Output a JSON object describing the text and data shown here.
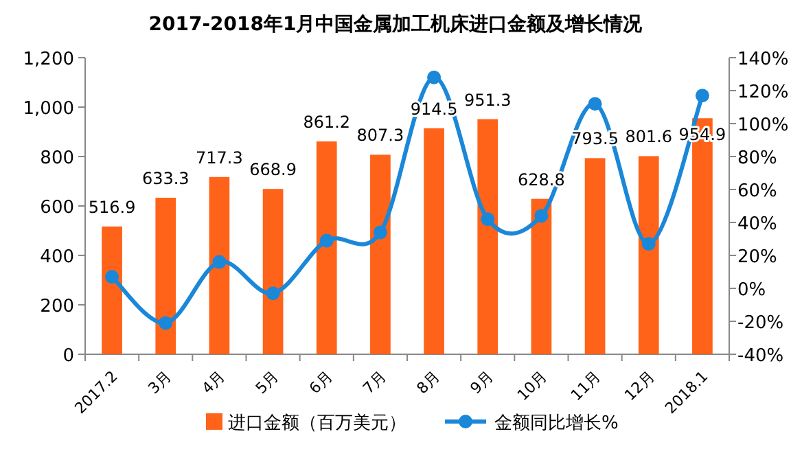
{
  "chart_data": {
    "type": "bar",
    "title": "2017-2018年1月中国金属加工机床进口金额及增长情况",
    "categories": [
      "2017.2",
      "3月",
      "4月",
      "5月",
      "6月",
      "7月",
      "8月",
      "9月",
      "10月",
      "11月",
      "12月",
      "2018.1"
    ],
    "series": [
      {
        "name": "进口金额（百万美元）",
        "color": "#ff6319",
        "values": [
          516.9,
          633.3,
          717.3,
          668.9,
          861.2,
          807.3,
          914.5,
          951.3,
          628.8,
          793.5,
          801.6,
          954.9
        ],
        "value_labels": [
          "516.9",
          "633.3",
          "717.3",
          "668.9",
          "861.2",
          "807.3",
          "914.5",
          "951.3",
          "628.8",
          "793.5",
          "801.6",
          "954.9"
        ]
      },
      {
        "name": "金额同比增长%",
        "type": "line",
        "axis": "y2",
        "color": "#1a87d9",
        "marker": "circle",
        "values": [
          7,
          -21,
          16,
          -3,
          29,
          34,
          128,
          42,
          44,
          112,
          27,
          117
        ]
      }
    ],
    "ylim": [
      0,
      1200
    ],
    "yticks": [
      0,
      200,
      400,
      600,
      800,
      {
        "value": 1000,
        "label": "1,000"
      },
      {
        "value": 1200,
        "label": "1,200"
      }
    ],
    "y2lim": [
      -40,
      140
    ],
    "y2ticks": [
      {
        "value": -40,
        "label": "-40%"
      },
      {
        "value": -20,
        "label": "-20%"
      },
      {
        "value": 0,
        "label": "0%"
      },
      {
        "value": 20,
        "label": "20%"
      },
      {
        "value": 40,
        "label": "40%"
      },
      {
        "value": 60,
        "label": "60%"
      },
      {
        "value": 80,
        "label": "80%"
      },
      {
        "value": 100,
        "label": "100%"
      },
      {
        "value": 120,
        "label": "120%"
      },
      {
        "value": 140,
        "label": "140%"
      }
    ],
    "legend": "bottom",
    "grid": false
  }
}
